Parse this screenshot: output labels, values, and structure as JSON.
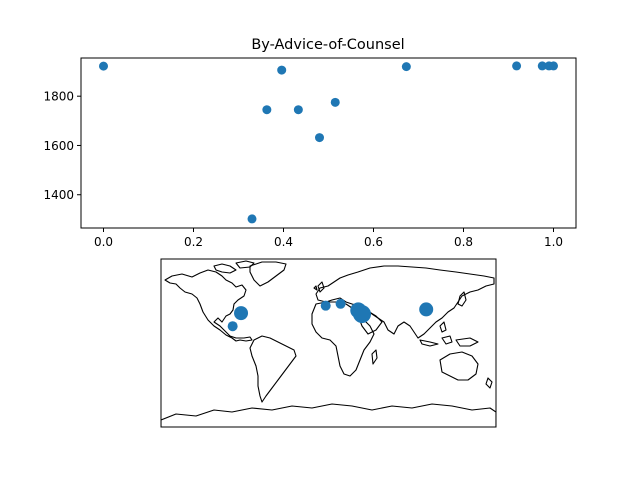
{
  "chart_data": [
    {
      "type": "scatter",
      "title": "By-Advice-of-Counsel",
      "xlabel": "",
      "ylabel": "",
      "xlim": [
        -0.05,
        1.05
      ],
      "ylim": [
        1265,
        1955
      ],
      "x_ticks": [
        0.0,
        0.2,
        0.4,
        0.6,
        0.8,
        1.0
      ],
      "x_tick_labels": [
        "0.0",
        "0.2",
        "0.4",
        "0.6",
        "0.8",
        "1.0"
      ],
      "y_ticks": [
        1400,
        1600,
        1800
      ],
      "y_tick_labels": [
        "1400",
        "1600",
        "1800"
      ],
      "grid": false,
      "color": "#1f77b4",
      "points": [
        {
          "x": 0.0,
          "y": 1922
        },
        {
          "x": 0.33,
          "y": 1302
        },
        {
          "x": 0.363,
          "y": 1745
        },
        {
          "x": 0.396,
          "y": 1906
        },
        {
          "x": 0.433,
          "y": 1745
        },
        {
          "x": 0.48,
          "y": 1632
        },
        {
          "x": 0.515,
          "y": 1775
        },
        {
          "x": 0.673,
          "y": 1920
        },
        {
          "x": 0.918,
          "y": 1923
        },
        {
          "x": 0.975,
          "y": 1923
        },
        {
          "x": 0.99,
          "y": 1923
        },
        {
          "x": 1.0,
          "y": 1923
        }
      ]
    },
    {
      "type": "scatter",
      "projection": "plate-carree world map with coastlines",
      "xlim": [
        -180,
        180
      ],
      "ylim": [
        -90,
        90
      ],
      "color": "#1f77b4",
      "points": [
        {
          "lon": -103,
          "lat": 18,
          "size": 5
        },
        {
          "lon": -94,
          "lat": 32,
          "size": 7
        },
        {
          "lon": -3,
          "lat": 40,
          "size": 5
        },
        {
          "lon": 13,
          "lat": 42,
          "size": 5
        },
        {
          "lon": 32,
          "lat": 35,
          "size": 8
        },
        {
          "lon": 36,
          "lat": 31,
          "size": 9
        },
        {
          "lon": 105,
          "lat": 36,
          "size": 7
        }
      ]
    }
  ]
}
